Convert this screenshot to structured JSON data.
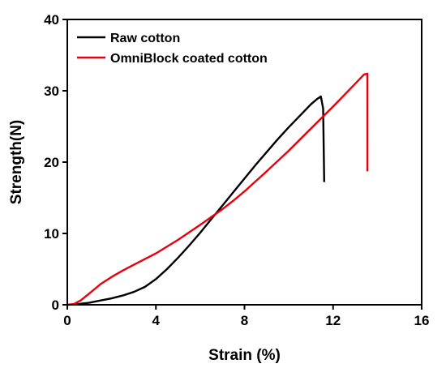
{
  "chart_data": {
    "type": "line",
    "xlabel": "Strain (%)",
    "ylabel": "Strength(N)",
    "xlim": [
      0,
      16
    ],
    "ylim": [
      0,
      40
    ],
    "xticks": [
      "0",
      "4",
      "8",
      "12",
      "16"
    ],
    "yticks": [
      "0",
      "10",
      "20",
      "30",
      "40"
    ],
    "grid": false,
    "legend_position": "top-left",
    "series": [
      {
        "name": "Raw cotton",
        "color": "#000000",
        "x": [
          0,
          0.5,
          1,
          1.5,
          2,
          2.5,
          3,
          3.5,
          4,
          4.5,
          5,
          5.5,
          6,
          6.5,
          7,
          7.5,
          8,
          8.5,
          9,
          9.5,
          10,
          10.5,
          11,
          11.3,
          11.45,
          11.55,
          11.6
        ],
        "y": [
          0,
          0.1,
          0.3,
          0.6,
          0.9,
          1.3,
          1.8,
          2.5,
          3.6,
          5.0,
          6.6,
          8.3,
          10.1,
          12.0,
          13.9,
          15.8,
          17.7,
          19.6,
          21.4,
          23.2,
          24.9,
          26.5,
          28.1,
          28.9,
          29.2,
          27.5,
          17.2
        ]
      },
      {
        "name": "OmniBlock coated cotton",
        "color": "#e8000b",
        "x": [
          0,
          0.3,
          0.6,
          1,
          1.5,
          2,
          2.5,
          3,
          4,
          5,
          6,
          7,
          7.5,
          8,
          9,
          10,
          11,
          12,
          13,
          13.4,
          13.55,
          13.55
        ],
        "y": [
          0,
          0.1,
          0.6,
          1.6,
          2.9,
          3.9,
          4.8,
          5.6,
          7.2,
          9.1,
          11.2,
          13.4,
          14.6,
          15.9,
          18.7,
          21.6,
          24.7,
          27.8,
          31.0,
          32.3,
          32.4,
          18.7
        ]
      }
    ]
  }
}
